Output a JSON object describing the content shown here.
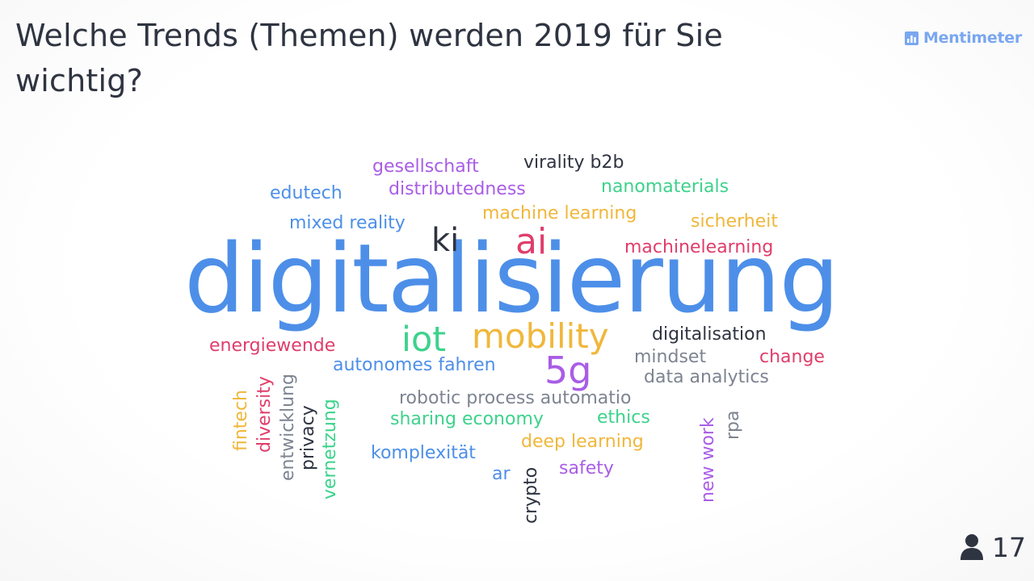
{
  "question": "Welche Trends (Themen) werden 2019 für Sie wichtig?",
  "brand": {
    "name": "Mentimeter",
    "icon": "bar-chart-icon",
    "color": "#7aa7f0"
  },
  "respondents": {
    "icon": "person-icon",
    "count": "17"
  },
  "colors": {
    "blue": "#4d8fe8",
    "purple": "#a95de6",
    "red": "#e03d6b",
    "yellow": "#f0b73b",
    "green": "#3dd28c",
    "dark": "#2f3441",
    "gray": "#7d8491"
  },
  "words": [
    {
      "text": "digitalisierung",
      "color": "blue"
    },
    {
      "text": "ai",
      "color": "red"
    },
    {
      "text": "ki",
      "color": "dark"
    },
    {
      "text": "mobility",
      "color": "yellow"
    },
    {
      "text": "iot",
      "color": "green"
    },
    {
      "text": "5g",
      "color": "purple"
    },
    {
      "text": "gesellschaft",
      "color": "purple"
    },
    {
      "text": "virality b2b",
      "color": "dark"
    },
    {
      "text": "edutech",
      "color": "blue"
    },
    {
      "text": "distributedness",
      "color": "purple"
    },
    {
      "text": "nanomaterials",
      "color": "green"
    },
    {
      "text": "mixed reality",
      "color": "blue"
    },
    {
      "text": "machine learning",
      "color": "yellow"
    },
    {
      "text": "sicherheit",
      "color": "yellow"
    },
    {
      "text": "machinelearning",
      "color": "red"
    },
    {
      "text": "energiewende",
      "color": "red"
    },
    {
      "text": "digitalisation",
      "color": "dark"
    },
    {
      "text": "mindset",
      "color": "gray"
    },
    {
      "text": "change",
      "color": "red"
    },
    {
      "text": "autonomes fahren",
      "color": "blue"
    },
    {
      "text": "data analytics",
      "color": "gray"
    },
    {
      "text": "robotic process automatio",
      "color": "gray"
    },
    {
      "text": "sharing economy",
      "color": "green"
    },
    {
      "text": "ethics",
      "color": "green"
    },
    {
      "text": "deep learning",
      "color": "yellow"
    },
    {
      "text": "komplexität",
      "color": "blue"
    },
    {
      "text": "safety",
      "color": "purple"
    },
    {
      "text": "ar",
      "color": "blue"
    },
    {
      "text": "fintech",
      "color": "yellow"
    },
    {
      "text": "diversity",
      "color": "red"
    },
    {
      "text": "entwicklung",
      "color": "gray"
    },
    {
      "text": "privacy",
      "color": "dark"
    },
    {
      "text": "vernetzung",
      "color": "green"
    },
    {
      "text": "crypto",
      "color": "dark"
    },
    {
      "text": "new work",
      "color": "purple"
    },
    {
      "text": "rpa",
      "color": "gray"
    }
  ]
}
